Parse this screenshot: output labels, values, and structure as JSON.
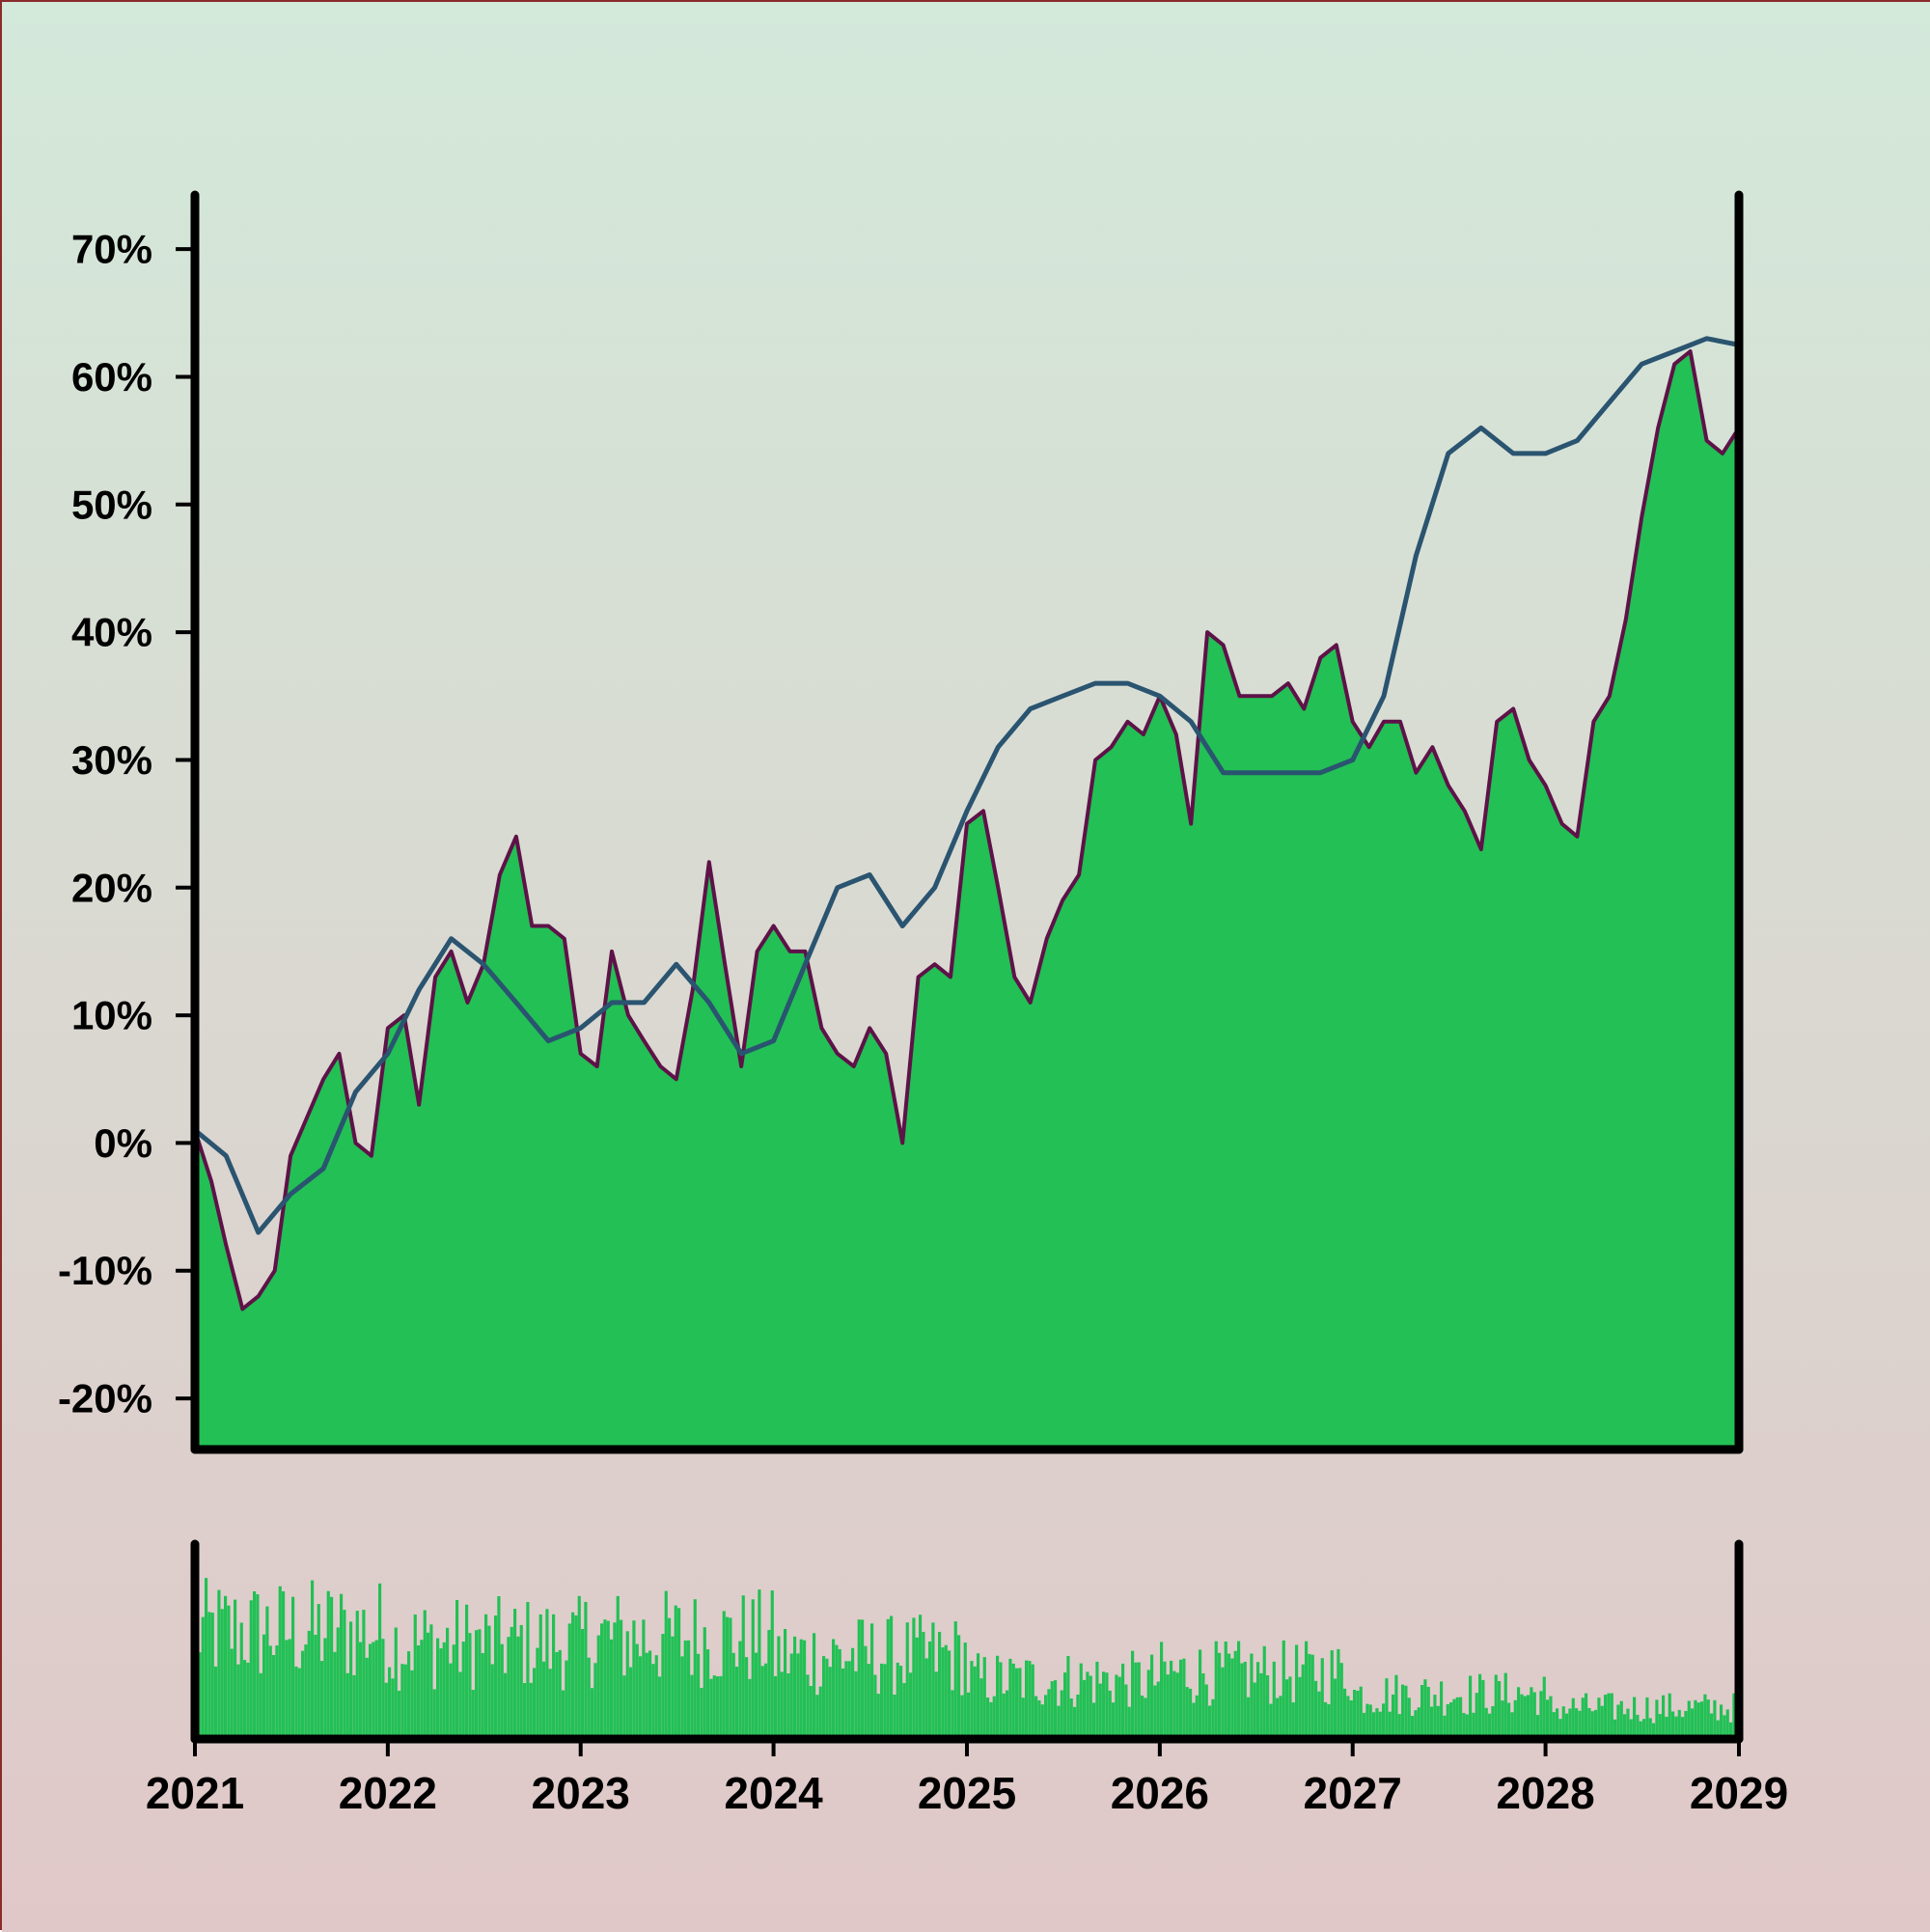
{
  "chart_data": {
    "type": "area",
    "x_axis": {
      "kind": "date",
      "range": [
        "2021-01-01",
        "2029-01-01"
      ],
      "ticks": [
        {
          "value": "2021-01-01",
          "label": "2021"
        },
        {
          "value": "2022-01-01",
          "label": "2022"
        },
        {
          "value": "2023-01-01",
          "label": "2023"
        },
        {
          "value": "2024-01-01",
          "label": "2024"
        },
        {
          "value": "2025-01-01",
          "label": "2025"
        },
        {
          "value": "2026-01-01",
          "label": "2026"
        },
        {
          "value": "2027-01-01",
          "label": "2027"
        },
        {
          "value": "2028-01-01",
          "label": "2028"
        },
        {
          "value": "2029-01-01",
          "label": "2029"
        }
      ]
    },
    "y_axis": {
      "range": [
        -24,
        75
      ],
      "unit": "%",
      "ticks": [
        {
          "value": -20,
          "label": "-20%"
        },
        {
          "value": -10,
          "label": "-10%"
        },
        {
          "value": 0,
          "label": "0%"
        },
        {
          "value": 10,
          "label": "10%"
        },
        {
          "value": 20,
          "label": "20%"
        },
        {
          "value": 30,
          "label": "30%"
        },
        {
          "value": 40,
          "label": "40%"
        },
        {
          "value": 50,
          "label": "50%"
        },
        {
          "value": 60,
          "label": "60%"
        },
        {
          "value": 70,
          "label": "70%"
        }
      ]
    },
    "grid": false,
    "legend": "none",
    "main_series": {
      "style": "area",
      "x": [
        "2021-01-01",
        "2021-02-01",
        "2021-03-01",
        "2021-04-01",
        "2021-05-01",
        "2021-06-01",
        "2021-07-01",
        "2021-08-01",
        "2021-09-01",
        "2021-10-01",
        "2021-11-01",
        "2021-12-01",
        "2022-01-01",
        "2022-02-01",
        "2022-03-01",
        "2022-04-01",
        "2022-05-01",
        "2022-06-01",
        "2022-07-01",
        "2022-08-01",
        "2022-09-01",
        "2022-10-01",
        "2022-11-01",
        "2022-12-01",
        "2023-01-01",
        "2023-02-01",
        "2023-03-01",
        "2023-04-01",
        "2023-05-01",
        "2023-06-01",
        "2023-07-01",
        "2023-08-01",
        "2023-09-01",
        "2023-10-01",
        "2023-11-01",
        "2023-12-01",
        "2024-01-01",
        "2024-02-01",
        "2024-03-01",
        "2024-04-01",
        "2024-05-01",
        "2024-06-01",
        "2024-07-01",
        "2024-08-01",
        "2024-09-01",
        "2024-10-01",
        "2024-11-01",
        "2024-12-01",
        "2025-01-01",
        "2025-02-01",
        "2025-03-01",
        "2025-04-01",
        "2025-05-01",
        "2025-06-01",
        "2025-07-01",
        "2025-08-01",
        "2025-09-01",
        "2025-10-01",
        "2025-11-01",
        "2025-12-01",
        "2026-01-01",
        "2026-02-01",
        "2026-03-01",
        "2026-04-01",
        "2026-05-01",
        "2026-06-01",
        "2026-07-01",
        "2026-08-01",
        "2026-09-01",
        "2026-10-01",
        "2026-11-01",
        "2026-12-01",
        "2027-01-01",
        "2027-02-01",
        "2027-03-01",
        "2027-04-01",
        "2027-05-01",
        "2027-06-01",
        "2027-07-01",
        "2027-08-01",
        "2027-09-01",
        "2027-10-01",
        "2027-11-01",
        "2027-12-01",
        "2028-01-01",
        "2028-02-01",
        "2028-03-01",
        "2028-04-01",
        "2028-05-01",
        "2028-06-01",
        "2028-07-01",
        "2028-08-01",
        "2028-09-01",
        "2028-10-01",
        "2028-11-01",
        "2028-12-01",
        "2029-01-01"
      ],
      "y": [
        1,
        -3,
        -8,
        -13,
        -12,
        -10,
        -1,
        2,
        5,
        7,
        0,
        -1,
        9,
        10,
        3,
        13,
        15,
        11,
        14,
        21,
        24,
        17,
        17,
        16,
        7,
        6,
        15,
        10,
        8,
        6,
        5,
        12,
        22,
        14,
        6,
        15,
        17,
        15,
        15,
        9,
        7,
        6,
        9,
        7,
        0,
        13,
        14,
        13,
        25,
        26,
        20,
        13,
        11,
        16,
        19,
        21,
        30,
        31,
        33,
        32,
        35,
        32,
        25,
        40,
        39,
        35,
        35,
        35,
        36,
        34,
        38,
        39,
        33,
        31,
        33,
        33,
        29,
        31,
        28,
        26,
        23,
        33,
        34,
        30,
        28,
        25,
        24,
        33,
        35,
        41,
        49,
        56,
        61,
        62,
        55,
        54,
        56
      ]
    },
    "smoothed_series": {
      "style": "line",
      "x": [
        "2021-01-01",
        "2021-03-01",
        "2021-05-01",
        "2021-07-01",
        "2021-09-01",
        "2021-11-01",
        "2022-01-01",
        "2022-03-01",
        "2022-05-01",
        "2022-07-01",
        "2022-09-01",
        "2022-11-01",
        "2023-01-01",
        "2023-03-01",
        "2023-05-01",
        "2023-07-01",
        "2023-09-01",
        "2023-11-01",
        "2024-01-01",
        "2024-03-01",
        "2024-05-01",
        "2024-07-01",
        "2024-09-01",
        "2024-11-01",
        "2025-01-01",
        "2025-03-01",
        "2025-05-01",
        "2025-07-01",
        "2025-09-01",
        "2025-11-01",
        "2026-01-01",
        "2026-03-01",
        "2026-05-01",
        "2026-07-01",
        "2026-09-01",
        "2026-11-01",
        "2027-01-01",
        "2027-03-01",
        "2027-05-01",
        "2027-07-01",
        "2027-09-01",
        "2027-11-01",
        "2028-01-01",
        "2028-03-01",
        "2028-05-01",
        "2028-07-01",
        "2028-09-01",
        "2028-11-01",
        "2029-01-01"
      ],
      "y": [
        1,
        -1,
        -7,
        -4,
        -2,
        4,
        7,
        12,
        16,
        14,
        11,
        8,
        9,
        11,
        11,
        14,
        11,
        7,
        8,
        14,
        20,
        21,
        17,
        20,
        26,
        31,
        34,
        35,
        36,
        36,
        35,
        33,
        29,
        29,
        29,
        29,
        30,
        35,
        46,
        54,
        56,
        54,
        54,
        55,
        58,
        61,
        62,
        63,
        62.5
      ]
    },
    "volume_series": {
      "style": "bar",
      "y_range": [
        0,
        1
      ],
      "x_range": [
        "2021-01-01",
        "2029-01-01"
      ],
      "bar_count": 480,
      "level_by_year": [
        {
          "year": "2021",
          "typical": 0.62
        },
        {
          "year": "2022",
          "typical": 0.55
        },
        {
          "year": "2023",
          "typical": 0.58
        },
        {
          "year": "2024",
          "typical": 0.48
        },
        {
          "year": "2025",
          "typical": 0.34
        },
        {
          "year": "2026",
          "typical": 0.38
        },
        {
          "year": "2027",
          "typical": 0.26
        },
        {
          "year": "2028",
          "typical": 0.18
        }
      ]
    },
    "colors": {
      "area_fill": "#22c055",
      "area_edge": "#5e1248",
      "smoothed_line": "#2a5470",
      "volume_bars": "#22c055",
      "axis": "#000000",
      "background_top": "#d3e9da",
      "background_bottom": "#e0c8c8"
    }
  }
}
